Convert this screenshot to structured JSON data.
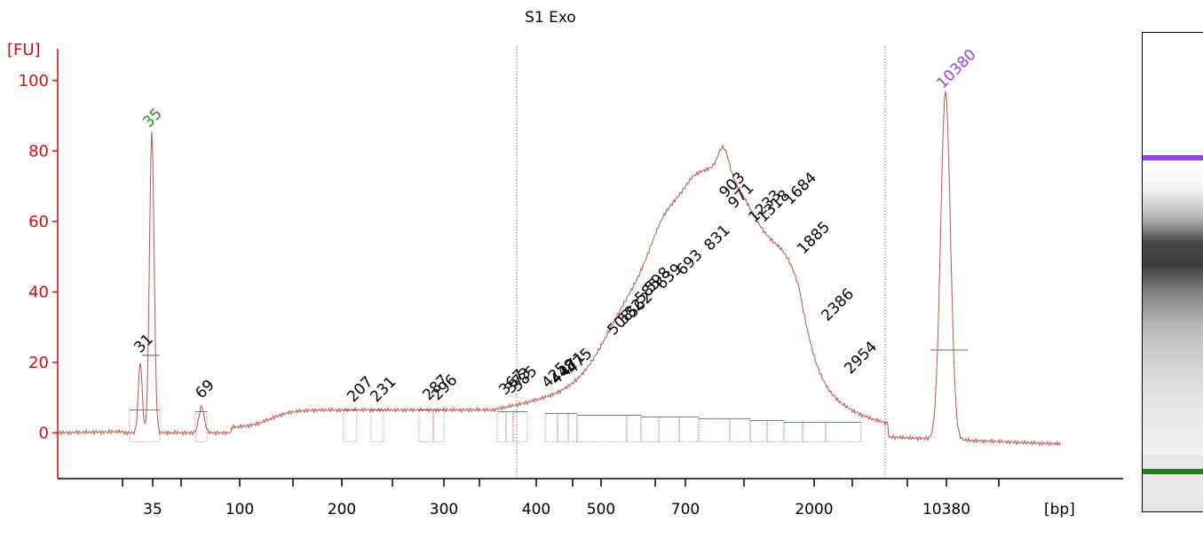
{
  "chart_data": {
    "type": "line",
    "title": "S1 Exo",
    "ylabel": "[FU]",
    "xlabel": "[bp]",
    "ylim": [
      -13,
      107
    ],
    "y_ticks": [
      "0",
      "20",
      "40",
      "60",
      "80",
      "100"
    ],
    "x_ticks": [
      "35",
      "100",
      "200",
      "300",
      "400",
      "500",
      "700",
      "2000",
      "10380"
    ],
    "markers": [
      {
        "label": "35",
        "color": "#2e8b2e",
        "fu": 85
      },
      {
        "label": "10380",
        "color": "#9a3fe0",
        "fu": 96
      }
    ],
    "peak_labels": [
      {
        "label": "31",
        "fu": 21
      },
      {
        "label": "69",
        "fu": 8
      },
      {
        "label": "207",
        "fu": 7
      },
      {
        "label": "231",
        "fu": 7
      },
      {
        "label": "287",
        "fu": 7.5
      },
      {
        "label": "296",
        "fu": 7.5
      },
      {
        "label": "367",
        "fu": 9
      },
      {
        "label": "373",
        "fu": 9.5
      },
      {
        "label": "385",
        "fu": 10
      },
      {
        "label": "425",
        "fu": 11
      },
      {
        "label": "448",
        "fu": 12
      },
      {
        "label": "471",
        "fu": 14
      },
      {
        "label": "475",
        "fu": 15
      },
      {
        "label": "508",
        "fu": 26
      },
      {
        "label": "532",
        "fu": 29
      },
      {
        "label": "562",
        "fu": 31
      },
      {
        "label": "585",
        "fu": 35
      },
      {
        "label": "598",
        "fu": 38
      },
      {
        "label": "639",
        "fu": 39
      },
      {
        "label": "693",
        "fu": 43
      },
      {
        "label": "831",
        "fu": 50
      },
      {
        "label": "903",
        "fu": 65
      },
      {
        "label": "971",
        "fu": 62
      },
      {
        "label": "1233",
        "fu": 58
      },
      {
        "label": "1318",
        "fu": 58
      },
      {
        "label": "1684",
        "fu": 63
      },
      {
        "label": "1885",
        "fu": 49
      },
      {
        "label": "2386",
        "fu": 30
      },
      {
        "label": "2954",
        "fu": 15
      }
    ]
  },
  "colors": {
    "trace": "#c0504d",
    "axis": "#d01010",
    "lower_marker": "#2e8b2e",
    "upper_marker": "#9a3fe0"
  }
}
